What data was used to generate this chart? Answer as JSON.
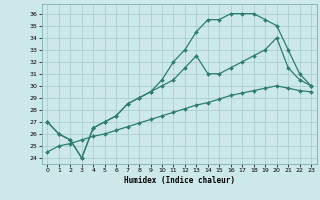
{
  "xlabel": "Humidex (Indice chaleur)",
  "line_color": "#2e7d6e",
  "bg_color": "#cce8e8",
  "grid_color": "#aacfcf",
  "xlim": [
    -0.5,
    23.5
  ],
  "ylim": [
    23.5,
    36.8
  ],
  "yticks": [
    24,
    25,
    26,
    27,
    28,
    29,
    30,
    31,
    32,
    33,
    34,
    35,
    36
  ],
  "xticks": [
    0,
    1,
    2,
    3,
    4,
    5,
    6,
    7,
    8,
    9,
    10,
    11,
    12,
    13,
    14,
    15,
    16,
    17,
    18,
    19,
    20,
    21,
    22,
    23
  ],
  "line1_x": [
    0,
    1,
    2,
    3,
    4,
    5,
    6,
    7,
    8,
    9,
    10,
    11,
    12,
    13,
    14,
    15,
    16,
    17,
    18,
    19,
    20,
    21,
    22,
    23
  ],
  "line1_y": [
    27.0,
    26.0,
    25.5,
    24.0,
    26.5,
    27.0,
    27.5,
    28.5,
    29.0,
    29.5,
    30.5,
    32.0,
    33.0,
    34.5,
    35.5,
    35.5,
    36.0,
    36.0,
    36.0,
    35.5,
    35.0,
    33.0,
    31.0,
    30.0
  ],
  "line2_x": [
    0,
    1,
    2,
    3,
    4,
    5,
    6,
    7,
    8,
    9,
    10,
    11,
    12,
    13,
    14,
    15,
    16,
    17,
    18,
    19,
    20,
    21,
    22,
    23
  ],
  "line2_y": [
    27.0,
    26.0,
    25.5,
    24.0,
    26.5,
    27.0,
    27.5,
    28.5,
    29.0,
    29.5,
    30.0,
    30.5,
    31.5,
    32.5,
    31.0,
    31.0,
    31.5,
    32.0,
    32.5,
    33.0,
    34.0,
    31.5,
    30.5,
    30.0
  ],
  "line3_x": [
    0,
    1,
    2,
    3,
    4,
    5,
    6,
    7,
    8,
    9,
    10,
    11,
    12,
    13,
    14,
    15,
    16,
    17,
    18,
    19,
    20,
    21,
    22,
    23
  ],
  "line3_y": [
    24.5,
    25.0,
    25.2,
    25.5,
    25.8,
    26.0,
    26.3,
    26.6,
    26.9,
    27.2,
    27.5,
    27.8,
    28.1,
    28.4,
    28.6,
    28.9,
    29.2,
    29.4,
    29.6,
    29.8,
    30.0,
    29.8,
    29.6,
    29.5
  ]
}
